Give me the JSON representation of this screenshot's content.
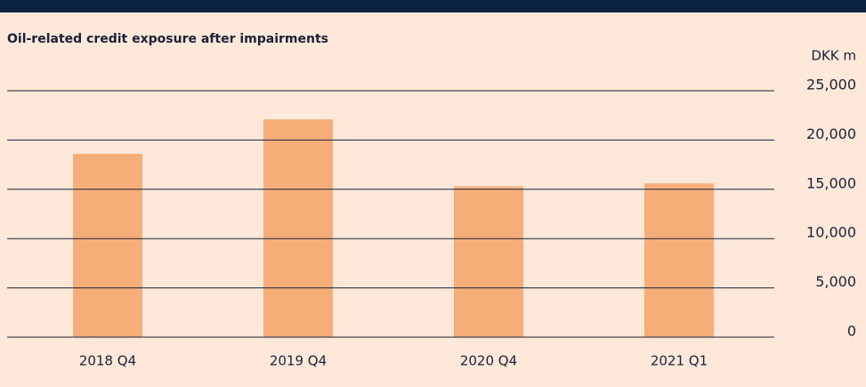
{
  "chart_data": {
    "type": "bar",
    "title": "Oil-related credit exposure after impairments",
    "y_axis_label": "DKK m",
    "categories": [
      "2018 Q4",
      "2019 Q4",
      "2020 Q4",
      "2021 Q1"
    ],
    "values": [
      18600,
      22100,
      15300,
      15600
    ],
    "color": "#f6ae78",
    "ylim": [
      0,
      25000
    ],
    "yticks": [
      0,
      {
        "value": 5000,
        "label": "5,000"
      },
      {
        "value": 10000,
        "label": "10,000"
      },
      {
        "value": 15000,
        "label": "15,000"
      },
      {
        "value": 20000,
        "label": "20,000"
      },
      {
        "value": 25000,
        "label": "25,000"
      }
    ],
    "grid": true
  }
}
